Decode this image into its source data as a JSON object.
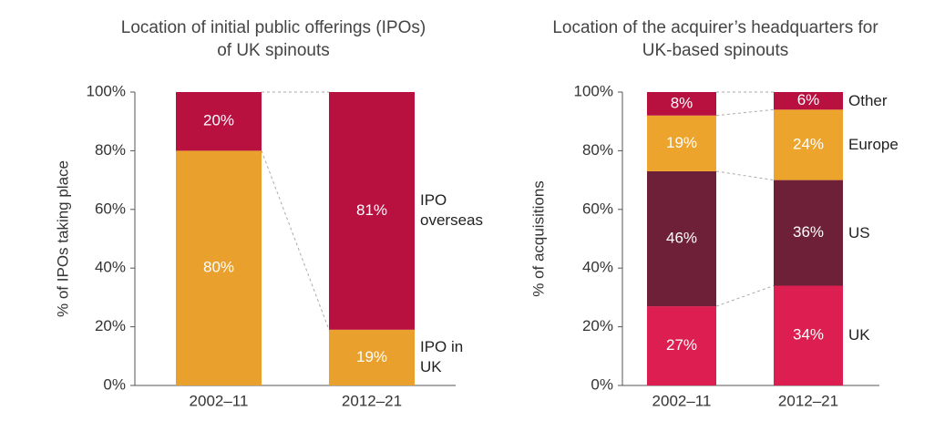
{
  "chart_data": [
    {
      "type": "stacked-bar",
      "title": "Location of initial public offerings (IPOs) of UK spinouts",
      "y_label": "% of IPOs taking place",
      "categories": [
        "2002–11",
        "2012–21"
      ],
      "series": [
        {
          "name": "IPO in UK",
          "color": "#e9a02c",
          "values": [
            80,
            19
          ],
          "value_labels": [
            "80%",
            "19%"
          ]
        },
        {
          "name": "IPO overseas",
          "color": "#b8103f",
          "values": [
            20,
            81
          ],
          "value_labels": [
            "20%",
            "81%"
          ]
        }
      ],
      "ylim": [
        0,
        100
      ],
      "yticks": [
        {
          "value": 0,
          "label": "0%"
        },
        {
          "value": 20,
          "label": "20%"
        },
        {
          "value": 40,
          "label": "40%"
        },
        {
          "value": 60,
          "label": "60%"
        },
        {
          "value": 80,
          "label": "80%"
        },
        {
          "value": 100,
          "label": "100%"
        }
      ]
    },
    {
      "type": "stacked-bar",
      "title": "Location of the acquirer’s headquarters for UK-based spinouts",
      "y_label": "% of acquisitions",
      "categories": [
        "2002–11",
        "2012–21"
      ],
      "series": [
        {
          "name": "UK",
          "color": "#dc1f50",
          "values": [
            27,
            34
          ],
          "value_labels": [
            "27%",
            "34%"
          ]
        },
        {
          "name": "US",
          "color": "#6d2038",
          "values": [
            46,
            36
          ],
          "value_labels": [
            "46%",
            "36%"
          ]
        },
        {
          "name": "Europe",
          "color": "#eda42c",
          "values": [
            19,
            24
          ],
          "value_labels": [
            "19%",
            "24%"
          ]
        },
        {
          "name": "Other",
          "color": "#b8103f",
          "values": [
            8,
            6
          ],
          "value_labels": [
            "8%",
            "6%"
          ]
        }
      ],
      "ylim": [
        0,
        100
      ],
      "yticks": [
        {
          "value": 0,
          "label": "0%"
        },
        {
          "value": 20,
          "label": "20%"
        },
        {
          "value": 40,
          "label": "40%"
        },
        {
          "value": 60,
          "label": "60%"
        },
        {
          "value": 80,
          "label": "80%"
        },
        {
          "value": 100,
          "label": "100%"
        }
      ]
    }
  ]
}
